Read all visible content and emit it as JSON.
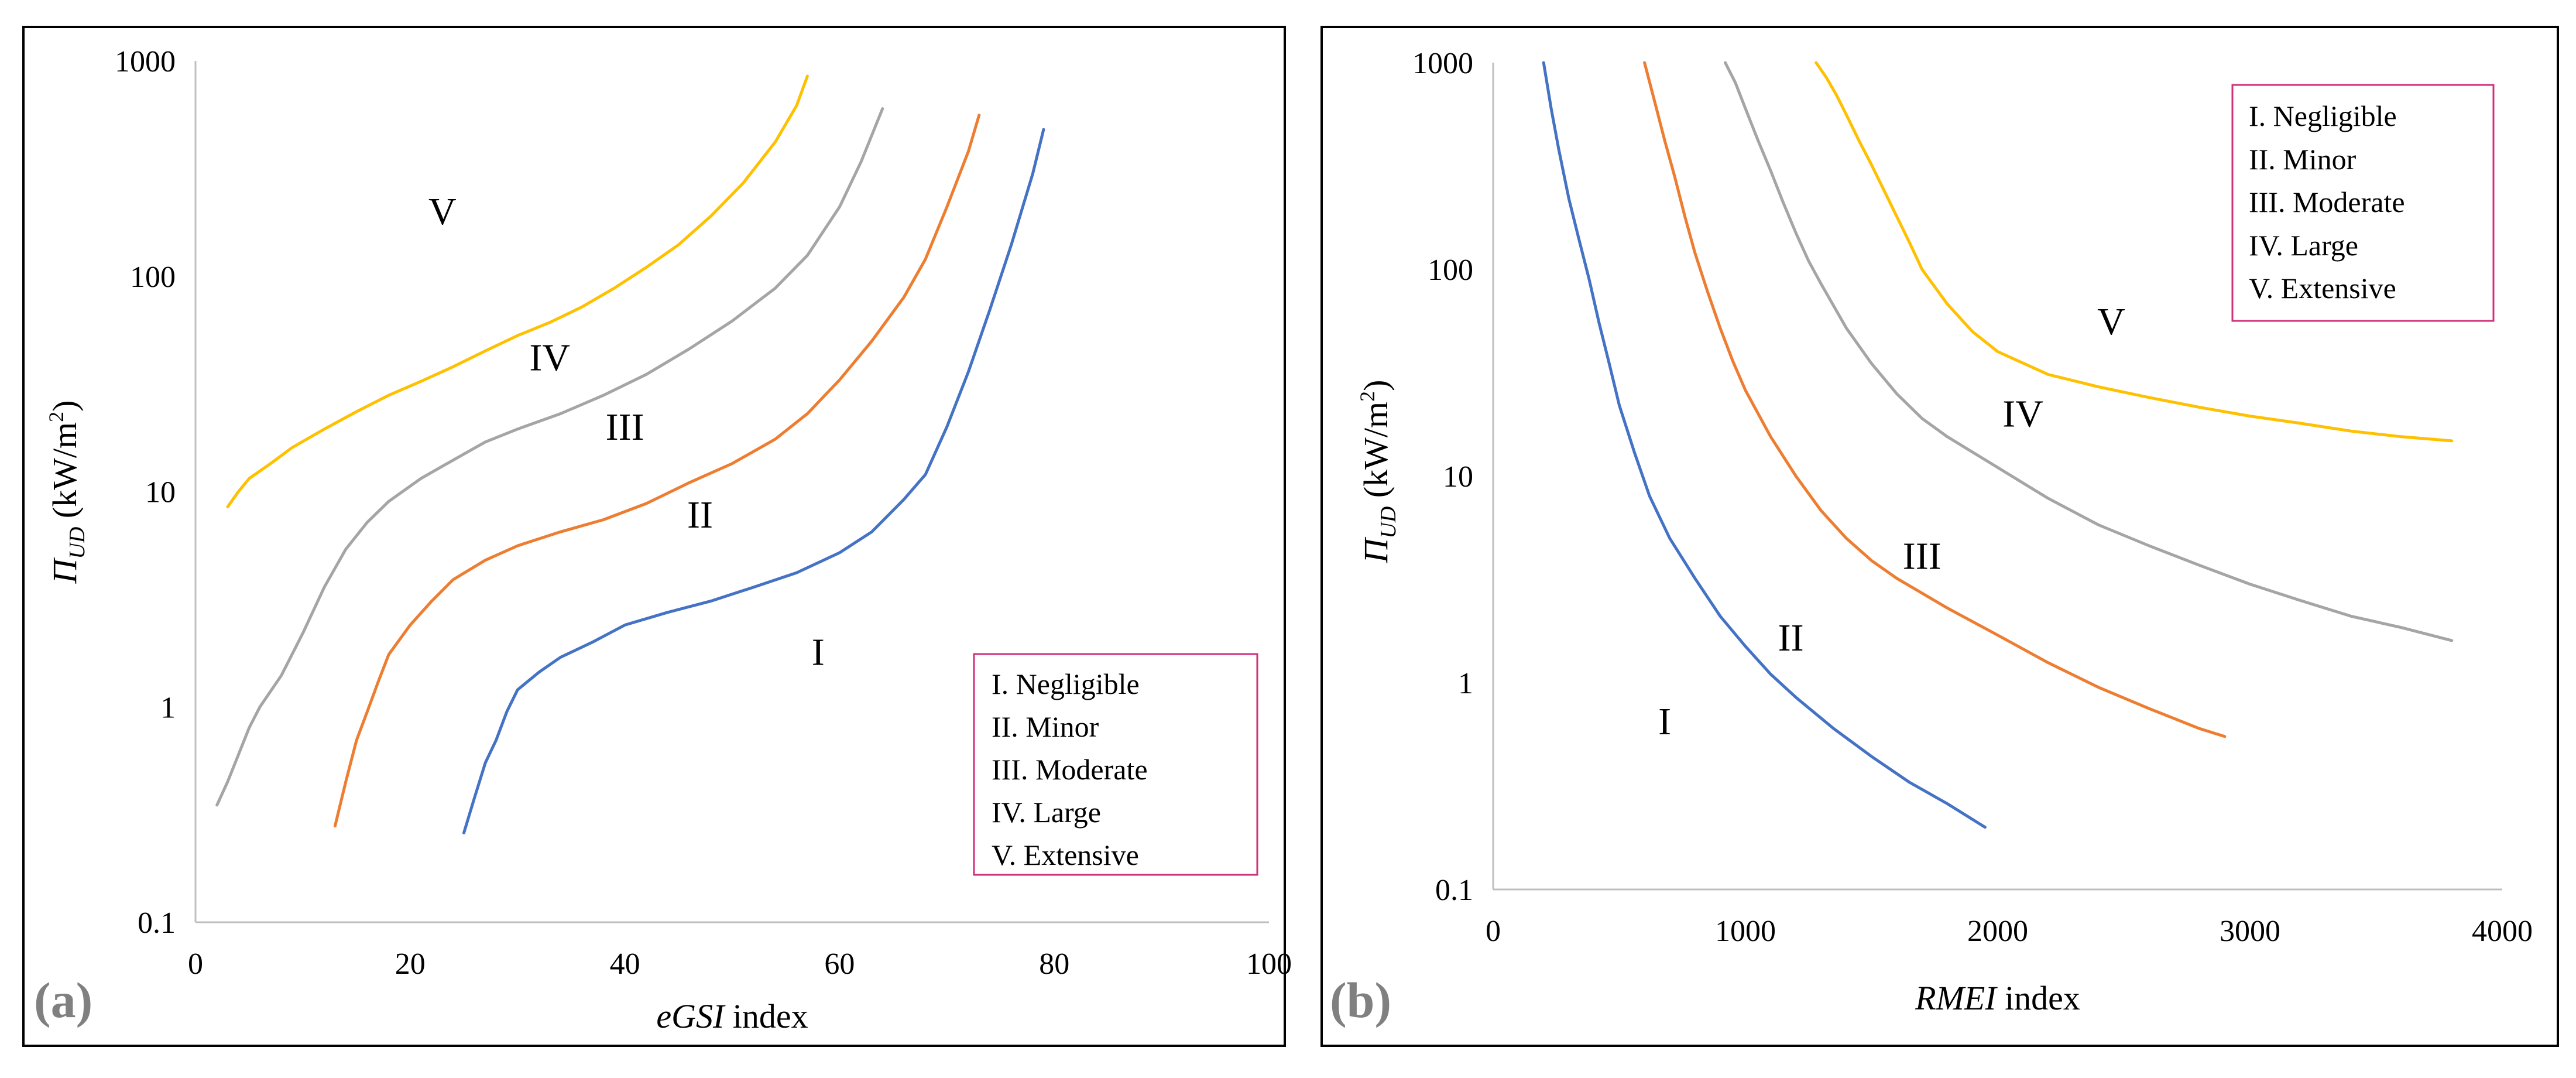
{
  "chart_data": [
    {
      "type": "line",
      "panel_label": "(a)",
      "xlabel_italic": "eGSI",
      "xlabel_rest": " index",
      "ylabel_symbol": "Π",
      "ylabel_sub": "UD",
      "ylabel_unit": " (kW/m",
      "ylabel_sup": "2",
      "ylabel_close": ")",
      "x_scale": "linear",
      "y_scale": "log",
      "xlim": [
        0,
        100
      ],
      "ylim": [
        0.1,
        1000
      ],
      "x_ticks": [
        "0",
        "20",
        "40",
        "60",
        "80",
        "100"
      ],
      "y_ticks": [
        "0.1",
        "1",
        "10",
        "100",
        "1000"
      ],
      "grid": false,
      "legend_position": "bottom-right",
      "legend": [
        "I. Negligible",
        "II. Minor",
        "III. Moderate",
        "IV. Large",
        "V. Extensive"
      ],
      "zone_labels": [
        {
          "text": "I",
          "x": 58,
          "y": 1.8
        },
        {
          "text": "II",
          "x": 47,
          "y": 7.8
        },
        {
          "text": "III",
          "x": 40,
          "y": 20
        },
        {
          "text": "IV",
          "x": 33,
          "y": 42
        },
        {
          "text": "V",
          "x": 23,
          "y": 200
        }
      ],
      "series": [
        {
          "color": "#4472C4",
          "x": [
            25,
            26,
            27,
            28,
            29,
            30,
            32,
            34,
            37,
            40,
            44,
            48,
            52,
            56,
            60,
            63,
            66,
            68,
            70,
            72,
            74,
            76,
            78,
            79
          ],
          "y": [
            0.26,
            0.38,
            0.55,
            0.7,
            0.95,
            1.2,
            1.45,
            1.7,
            2.0,
            2.4,
            2.75,
            3.1,
            3.6,
            4.2,
            5.2,
            6.5,
            9.2,
            12,
            20,
            36,
            70,
            140,
            300,
            480
          ]
        },
        {
          "color": "#ED7D31",
          "x": [
            13,
            14,
            15,
            16,
            17,
            18,
            20,
            22,
            24,
            27,
            30,
            34,
            38,
            42,
            46,
            50,
            54,
            57,
            60,
            63,
            66,
            68,
            70,
            72,
            73
          ],
          "y": [
            0.28,
            0.45,
            0.7,
            0.95,
            1.3,
            1.75,
            2.4,
            3.1,
            3.9,
            4.8,
            5.6,
            6.5,
            7.4,
            8.8,
            11,
            13.5,
            17.5,
            23,
            33,
            50,
            80,
            120,
            210,
            380,
            560
          ]
        },
        {
          "color": "#A5A5A5",
          "x": [
            2,
            3,
            4,
            5,
            6,
            8,
            10,
            12,
            14,
            16,
            18,
            21,
            24,
            27,
            30,
            34,
            38,
            42,
            46,
            50,
            54,
            57,
            60,
            62,
            64
          ],
          "y": [
            0.35,
            0.45,
            0.6,
            0.8,
            1.0,
            1.4,
            2.2,
            3.6,
            5.4,
            7.2,
            9.0,
            11.5,
            14,
            17,
            19.5,
            23,
            28,
            35,
            46,
            62,
            88,
            125,
            210,
            340,
            600
          ]
        },
        {
          "color": "#FFC000",
          "x": [
            3,
            4,
            5,
            7,
            9,
            12,
            15,
            18,
            21,
            24,
            27,
            30,
            33,
            36,
            39,
            42,
            45,
            48,
            51,
            54,
            56,
            57
          ],
          "y": [
            8.5,
            10,
            11.5,
            13.5,
            16,
            19.5,
            23.5,
            28,
            32.5,
            38,
            45,
            53,
            61,
            72,
            88,
            110,
            140,
            190,
            270,
            420,
            620,
            850
          ]
        }
      ]
    },
    {
      "type": "line",
      "panel_label": "(b)",
      "xlabel_italic": "RMEI",
      "xlabel_rest": " index",
      "ylabel_symbol": "Π",
      "ylabel_sub": "UD",
      "ylabel_unit": " (kW/m",
      "ylabel_sup": "2",
      "ylabel_close": ")",
      "x_scale": "linear",
      "y_scale": "log",
      "xlim": [
        0,
        4000
      ],
      "ylim": [
        0.1,
        1000
      ],
      "x_ticks": [
        "0",
        "1000",
        "2000",
        "3000",
        "4000"
      ],
      "y_ticks": [
        "0.1",
        "1",
        "10",
        "100",
        "1000"
      ],
      "grid": false,
      "legend_position": "top-right",
      "legend": [
        "I. Negligible",
        "II. Minor",
        "III. Moderate",
        "IV. Large",
        "V. Extensive"
      ],
      "zone_labels": [
        {
          "text": "I",
          "x": 680,
          "y": 0.65
        },
        {
          "text": "II",
          "x": 1180,
          "y": 1.65
        },
        {
          "text": "III",
          "x": 1700,
          "y": 4.1
        },
        {
          "text": "IV",
          "x": 2100,
          "y": 20
        },
        {
          "text": "V",
          "x": 2450,
          "y": 56
        }
      ],
      "series": [
        {
          "color": "#4472C4",
          "x": [
            200,
            230,
            260,
            300,
            340,
            380,
            420,
            460,
            500,
            560,
            620,
            700,
            800,
            900,
            1000,
            1100,
            1200,
            1350,
            1500,
            1650,
            1800,
            1950
          ],
          "y": [
            1000,
            600,
            380,
            220,
            140,
            90,
            55,
            35,
            22,
            13,
            8,
            5,
            3.2,
            2.1,
            1.5,
            1.1,
            0.85,
            0.6,
            0.44,
            0.33,
            0.26,
            0.2
          ]
        },
        {
          "color": "#ED7D31",
          "x": [
            600,
            640,
            680,
            720,
            760,
            800,
            850,
            900,
            950,
            1000,
            1100,
            1200,
            1300,
            1400,
            1500,
            1600,
            1800,
            2000,
            2200,
            2400,
            2600,
            2800,
            2900
          ],
          "y": [
            1000,
            650,
            420,
            280,
            180,
            120,
            78,
            52,
            36,
            26,
            15.5,
            10,
            6.8,
            5,
            3.9,
            3.2,
            2.3,
            1.7,
            1.25,
            0.95,
            0.75,
            0.6,
            0.55
          ]
        },
        {
          "color": "#A5A5A5",
          "x": [
            920,
            960,
            1000,
            1050,
            1100,
            1150,
            1200,
            1250,
            1300,
            1400,
            1500,
            1600,
            1700,
            1800,
            2000,
            2200,
            2400,
            2600,
            2800,
            3000,
            3200,
            3400,
            3600,
            3800
          ],
          "y": [
            1000,
            800,
            600,
            420,
            300,
            210,
            150,
            110,
            85,
            52,
            35,
            25,
            19,
            15.5,
            11,
            7.8,
            5.8,
            4.6,
            3.7,
            3.0,
            2.5,
            2.1,
            1.85,
            1.6
          ]
        },
        {
          "color": "#FFC000",
          "x": [
            1280,
            1320,
            1360,
            1400,
            1450,
            1500,
            1550,
            1600,
            1650,
            1700,
            1800,
            1900,
            2000,
            2200,
            2400,
            2600,
            2800,
            3000,
            3200,
            3400,
            3600,
            3800
          ],
          "y": [
            1000,
            850,
            700,
            560,
            420,
            320,
            240,
            180,
            135,
            100,
            68,
            50,
            40,
            31,
            27,
            24,
            21.5,
            19.5,
            18,
            16.5,
            15.5,
            14.8
          ]
        }
      ]
    }
  ]
}
